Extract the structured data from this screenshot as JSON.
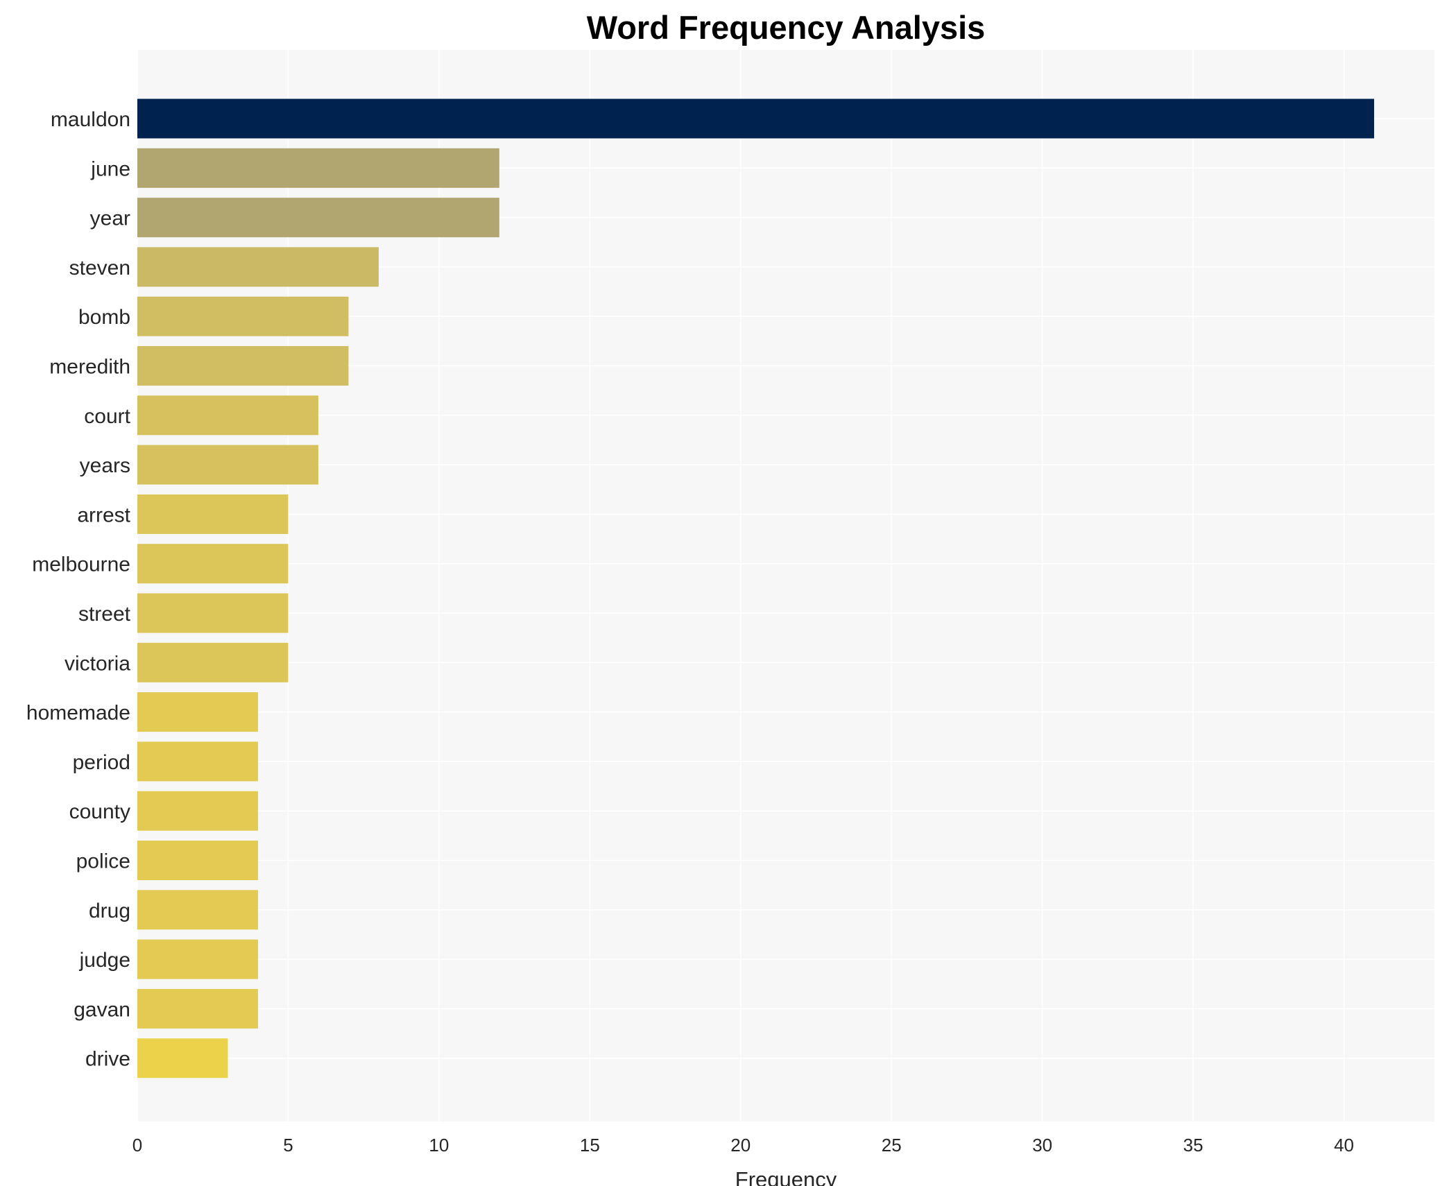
{
  "chart_data": {
    "type": "bar",
    "orientation": "horizontal",
    "title": "Word Frequency Analysis",
    "xlabel": "Frequency",
    "ylabel": "",
    "xlim": [
      0,
      43
    ],
    "x_ticks": [
      0,
      5,
      10,
      15,
      20,
      25,
      30,
      35,
      40
    ],
    "grid": true,
    "categories": [
      "mauldon",
      "june",
      "year",
      "steven",
      "bomb",
      "meredith",
      "court",
      "years",
      "arrest",
      "melbourne",
      "street",
      "victoria",
      "homemade",
      "period",
      "county",
      "police",
      "drug",
      "judge",
      "gavan",
      "drive"
    ],
    "values": [
      41,
      12,
      12,
      8,
      7,
      7,
      6,
      6,
      5,
      5,
      5,
      5,
      4,
      4,
      4,
      4,
      4,
      4,
      4,
      3
    ],
    "colors": [
      "#00224e",
      "#b1a570",
      "#b1a570",
      "#cbb966",
      "#d1bd62",
      "#d1bd62",
      "#d7c15e",
      "#d7c15e",
      "#dcc659",
      "#dcc659",
      "#dcc659",
      "#dcc659",
      "#e2ca53",
      "#e2ca53",
      "#e2ca53",
      "#e2ca53",
      "#e2ca53",
      "#e2ca53",
      "#e2ca53",
      "#ebd24a"
    ],
    "plot_background": "#f7f7f7"
  }
}
